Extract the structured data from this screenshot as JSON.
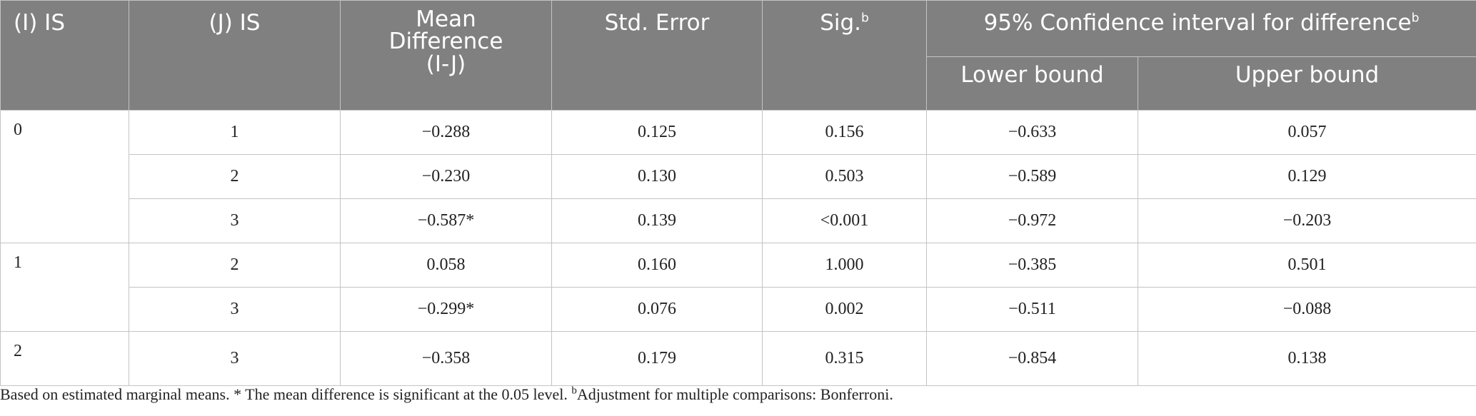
{
  "header": {
    "col_i": "(I) IS",
    "col_j": "(J) IS",
    "col_mean_line1": "Mean",
    "col_mean_line2": "Difference",
    "col_mean_line3": "(I-J)",
    "col_se": "Std. Error",
    "col_sig": "Sig.",
    "col_sig_sup": "b",
    "col_ci": "95% Confidence interval for difference",
    "col_ci_sup": "b",
    "col_lower": "Lower bound",
    "col_upper": "Upper bound"
  },
  "groups": [
    {
      "i": "0",
      "rows": [
        {
          "j": "1",
          "mean": "−0.288",
          "se": "0.125",
          "sig": "0.156",
          "lower": "−0.633",
          "upper": "0.057"
        },
        {
          "j": "2",
          "mean": "−0.230",
          "se": "0.130",
          "sig": "0.503",
          "lower": "−0.589",
          "upper": "0.129"
        },
        {
          "j": "3",
          "mean": "−0.587*",
          "se": "0.139",
          "sig": "<0.001",
          "lower": "−0.972",
          "upper": "−0.203"
        }
      ]
    },
    {
      "i": "1",
      "rows": [
        {
          "j": "2",
          "mean": "0.058",
          "se": "0.160",
          "sig": "1.000",
          "lower": "−0.385",
          "upper": "0.501"
        },
        {
          "j": "3",
          "mean": "−0.299*",
          "se": "0.076",
          "sig": "0.002",
          "lower": "−0.511",
          "upper": "−0.088"
        }
      ]
    },
    {
      "i": "2",
      "rows": [
        {
          "j": "3",
          "mean": "−0.358",
          "se": "0.179",
          "sig": "0.315",
          "lower": "−0.854",
          "upper": "0.138"
        }
      ]
    }
  ],
  "footnote": {
    "text_main": "Based on estimated marginal means. * The mean difference is significant at the 0.05 level. ",
    "sup": "b",
    "text_tail": "Adjustment for multiple comparisons: Bonferroni."
  }
}
